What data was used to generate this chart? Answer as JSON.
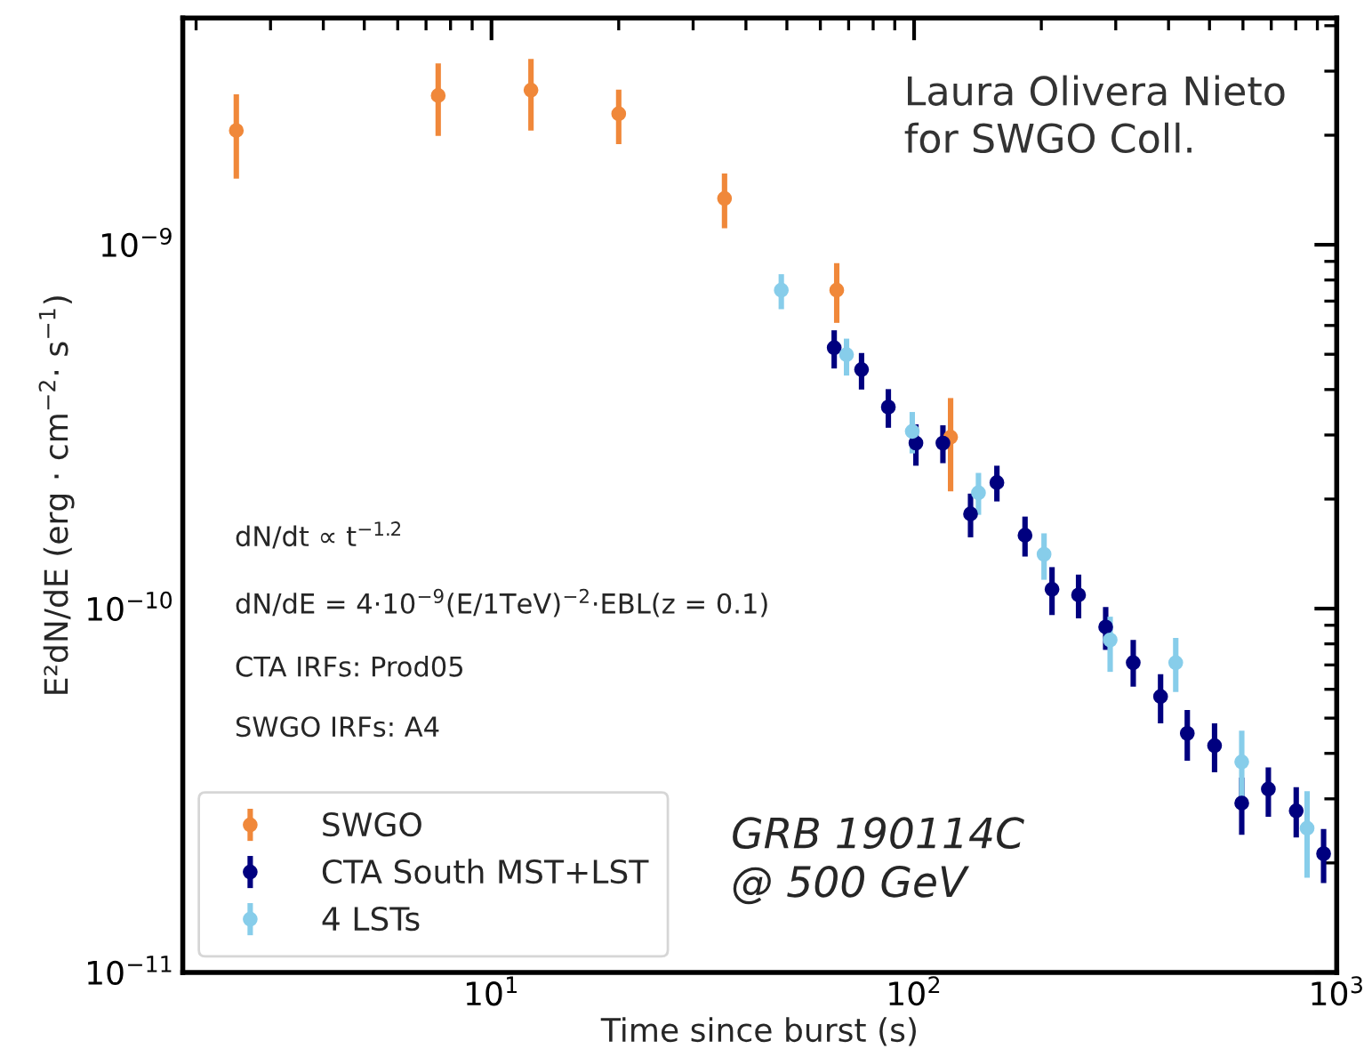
{
  "chart_data": {
    "type": "scatter",
    "xlabel": "Time since burst (s)",
    "ylabel": "E²dN/dE (erg · cm$^{−2}$· s$^{−1}$)",
    "log": "xy",
    "grid": false,
    "legend": "bottom left",
    "marker": "circle",
    "xlim": [
      1.86,
      1000
    ],
    "ylim": [
      1e-11,
      4.2e-09
    ],
    "xticks": [
      {
        "value": 10,
        "label": "10$^{1}$"
      },
      {
        "value": 100,
        "label": "10$^{2}$"
      },
      {
        "value": 1000,
        "label": "10$^{3}$"
      }
    ],
    "yticks": [
      {
        "value": 1e-11,
        "label": "10$^{−11}$"
      },
      {
        "value": 1e-10,
        "label": "10$^{−10}$"
      },
      {
        "value": 1e-09,
        "label": "10$^{−9}$"
      }
    ],
    "series": [
      {
        "name": "SWGO",
        "color": "#f0883a",
        "x": [
          2.49,
          7.48,
          12.4,
          20.0,
          35.6,
          65.6,
          122
        ],
        "values": [
          2.06e-09,
          2.57e-09,
          2.66e-09,
          2.29e-09,
          1.34e-09,
          7.5e-10,
          2.96e-10
        ],
        "errors": [
          [
            1.52e-09,
            2.59e-09
          ],
          [
            1.99e-09,
            3.15e-09
          ],
          [
            2.06e-09,
            3.24e-09
          ],
          [
            1.89e-09,
            2.67e-09
          ],
          [
            1.11e-09,
            1.57e-09
          ],
          [
            6.1e-10,
            8.9e-10
          ],
          [
            2.1e-10,
            3.79e-10
          ]
        ]
      },
      {
        "name": "CTA South MST+LST",
        "color": "#00007f",
        "x": [
          64.7,
          75.1,
          86.9,
          101,
          117,
          136,
          157,
          183,
          212,
          245,
          284,
          330,
          383,
          443,
          514,
          596,
          689,
          802,
          931
        ],
        "values": [
          5.21e-10,
          4.54e-10,
          3.58e-10,
          2.85e-10,
          2.85e-10,
          1.82e-10,
          2.22e-10,
          1.59e-10,
          1.13e-10,
          1.09e-10,
          8.9e-11,
          7.1e-11,
          5.73e-11,
          4.54e-11,
          4.2e-11,
          2.92e-11,
          3.19e-11,
          2.78e-11,
          2.12e-11
        ],
        "errors": [
          [
            4.57e-10,
            5.82e-10
          ],
          [
            4e-10,
            5.04e-10
          ],
          [
            3.14e-10,
            4.01e-10
          ],
          [
            2.47e-10,
            3.21e-10
          ],
          [
            2.51e-10,
            3.19e-10
          ],
          [
            1.57e-10,
            2.07e-10
          ],
          [
            1.97e-10,
            2.47e-10
          ],
          [
            1.39e-10,
            1.79e-10
          ],
          [
            9.6e-11,
            1.3e-10
          ],
          [
            9.4e-11,
            1.24e-10
          ],
          [
            7.7e-11,
            1.01e-10
          ],
          [
            6.1e-11,
            8.2e-11
          ],
          [
            4.84e-11,
            6.6e-11
          ],
          [
            3.82e-11,
            5.26e-11
          ],
          [
            3.55e-11,
            4.84e-11
          ],
          [
            2.39e-11,
            3.43e-11
          ],
          [
            2.68e-11,
            3.66e-11
          ],
          [
            2.35e-11,
            3.23e-11
          ],
          [
            1.76e-11,
            2.48e-11
          ]
        ]
      },
      {
        "name": "4 LSTs",
        "color": "#87cdea",
        "x": [
          48.5,
          69.2,
          99,
          142,
          203,
          291,
          416,
          596,
          851
        ],
        "values": [
          7.5e-10,
          4.99e-10,
          3.07e-10,
          2.08e-10,
          1.41e-10,
          8.2e-11,
          7.1e-11,
          3.79e-11,
          2.49e-11
        ],
        "errors": [
          [
            6.65e-10,
            8.3e-10
          ],
          [
            4.37e-10,
            5.52e-10
          ],
          [
            2.67e-10,
            3.47e-10
          ],
          [
            1.81e-10,
            2.36e-10
          ],
          [
            1.2e-10,
            1.61e-10
          ],
          [
            6.7e-11,
            9.5e-11
          ],
          [
            5.9e-11,
            8.3e-11
          ],
          [
            2.97e-11,
            4.62e-11
          ],
          [
            1.82e-11,
            3.15e-11
          ]
        ]
      }
    ],
    "annotations": [
      "Laura Olivera Nieto\nfor SWGO Coll.",
      "dN/dt ∝ t$^{−1.2}$",
      "dN/dE = 4·10$^{−9}$(E/1TeV)$^{−2}$·EBL(z = 0.1)",
      "CTA IRFs: Prod05",
      "SWGO IRFs: A4",
      "GRB 190114C\n@ 500 GeV"
    ]
  }
}
